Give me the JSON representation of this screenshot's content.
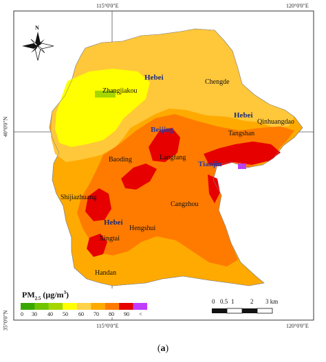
{
  "coords": {
    "top": [
      "115°0'0\"E",
      "120°0'0\"E"
    ],
    "bottom": [
      "115°0'0\"E",
      "120°0'0\"E"
    ],
    "left": [
      "40°0'0\"N",
      "35°0'0\"N"
    ]
  },
  "compass": {
    "north": "N",
    "icon": "compass-rose-icon"
  },
  "regions": [
    "Hebei",
    "Hebei",
    "Hebei",
    "Beijing",
    "Tianjin"
  ],
  "cities": [
    "Zhangjiakou",
    "Chengde",
    "Qinhuangdao",
    "Tangshan",
    "Baoding",
    "Langfang",
    "Shijiazhuang",
    "Cangzhou",
    "Hengshui",
    "Xingtai",
    "Handan"
  ],
  "legend": {
    "title": "PM",
    "title_sub": "2.5",
    "title_unit_pre": " (μg/m",
    "title_unit_sup": "3",
    "title_unit_post": ")",
    "ticks": [
      "0",
      "30",
      "40",
      "50",
      "60",
      "70",
      "80",
      "90",
      "<"
    ],
    "colors": [
      "#38a800",
      "#70c400",
      "#a6d600",
      "#ffff00",
      "#ffd24a",
      "#ffaa00",
      "#ff7b00",
      "#e60000",
      "#c03cff"
    ]
  },
  "scale_bar": {
    "labels": [
      "0",
      "0.5",
      "1",
      "2",
      "3 km"
    ]
  },
  "caption": {
    "open": "(",
    "letter": "a",
    "close": ")"
  }
}
